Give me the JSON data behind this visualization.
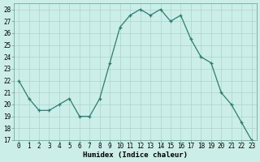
{
  "xlabel": "Humidex (Indice chaleur)",
  "x": [
    0,
    1,
    2,
    3,
    4,
    5,
    6,
    7,
    8,
    9,
    10,
    11,
    12,
    13,
    14,
    15,
    16,
    17,
    18,
    19,
    20,
    21,
    22,
    23
  ],
  "y": [
    22,
    20.5,
    19.5,
    19.5,
    20,
    20.5,
    19,
    19,
    20.5,
    23.5,
    26.5,
    27.5,
    28,
    27.5,
    28,
    27,
    27.5,
    25.5,
    24,
    23.5,
    21,
    20,
    18.5,
    17
  ],
  "line_color": "#2d7d6e",
  "bg_color": "#cceee8",
  "grid_color": "#aad4ce",
  "ylim": [
    17,
    28.5
  ],
  "yticks": [
    17,
    18,
    19,
    20,
    21,
    22,
    23,
    24,
    25,
    26,
    27,
    28
  ],
  "xticks": [
    0,
    1,
    2,
    3,
    4,
    5,
    6,
    7,
    8,
    9,
    10,
    11,
    12,
    13,
    14,
    15,
    16,
    17,
    18,
    19,
    20,
    21,
    22,
    23
  ],
  "tick_fontsize": 5.5,
  "xlabel_fontsize": 6.5
}
